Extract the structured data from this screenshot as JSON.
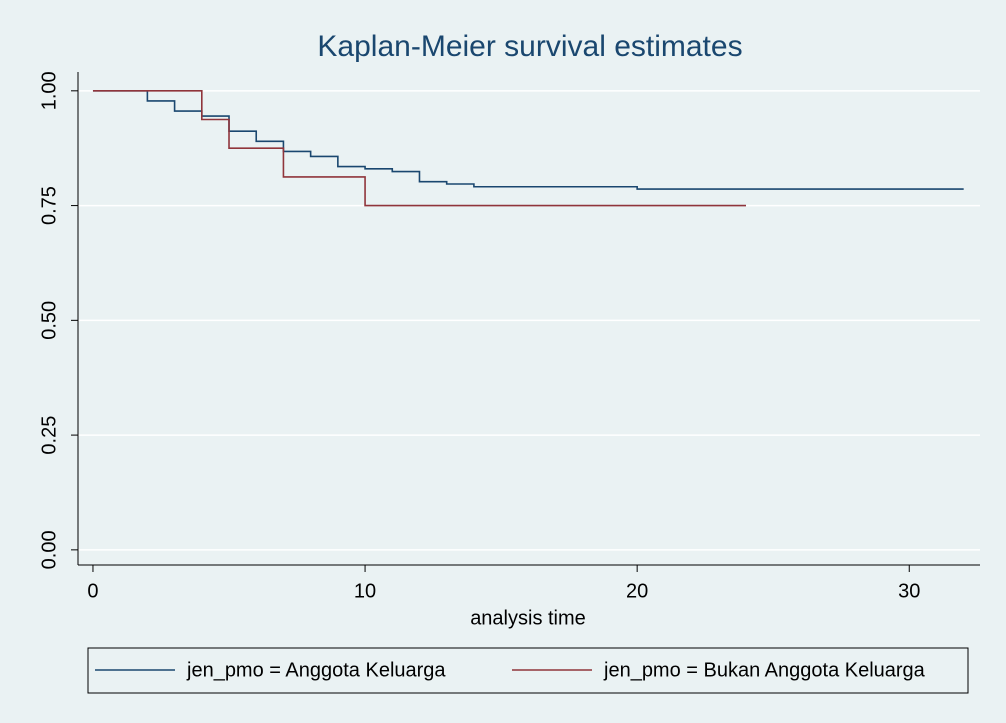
{
  "chart_data": {
    "type": "step-line",
    "title": "Kaplan-Meier survival estimates",
    "x_label": "analysis time",
    "series": [
      {
        "name": "jen_pmo = Anggota Keluarga",
        "color": "#1a476f",
        "x": [
          0,
          2,
          3,
          4,
          5,
          6,
          7,
          8,
          9,
          10,
          11,
          12,
          13,
          14,
          20,
          32
        ],
        "values": [
          1,
          0.978,
          0.956,
          0.945,
          0.912,
          0.89,
          0.868,
          0.857,
          0.835,
          0.83,
          0.824,
          0.802,
          0.797,
          0.791,
          0.786,
          0.786
        ]
      },
      {
        "name": "jen_pmo = Bukan Anggota Keluarga",
        "color": "#90353b",
        "x": [
          0,
          4,
          5,
          7,
          10,
          24
        ],
        "values": [
          1,
          0.9375,
          0.875,
          0.8125,
          0.75,
          0.75
        ]
      }
    ],
    "xlim": [
      -0.55,
      32.6
    ],
    "xticks": [
      0,
      10,
      20,
      30
    ],
    "ylim": [
      -0.033,
      1.041
    ],
    "yticks": [
      {
        "value": 0,
        "label": "0.00"
      },
      {
        "value": 0.25,
        "label": "0.25"
      },
      {
        "value": 0.5,
        "label": "0.50"
      },
      {
        "value": 0.75,
        "label": "0.75"
      },
      {
        "value": 1,
        "label": "1.00"
      }
    ],
    "grid": true
  }
}
